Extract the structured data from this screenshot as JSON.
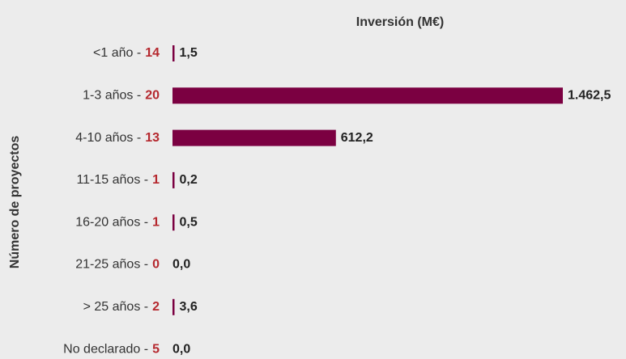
{
  "chart_data": {
    "type": "bar",
    "orientation": "horizontal",
    "title": "Inversión (M€)",
    "y_axis_label": "Número de proyectos",
    "categories": [
      "<1 año -",
      "1-3 años -",
      "4-10 años -",
      "11-15 años -",
      "16-20 años -",
      "21-25 años -",
      "> 25 años -",
      "No declarado -"
    ],
    "project_counts": [
      14,
      20,
      13,
      1,
      1,
      0,
      2,
      5
    ],
    "values": [
      1.5,
      1462.5,
      612.2,
      0.2,
      0.5,
      0,
      3.6,
      0
    ],
    "value_labels": [
      "1,5",
      "1.462,5",
      "612,2",
      "0,2",
      "0,5",
      "0,0",
      "3,6",
      "0,0"
    ],
    "color": "#7b0041",
    "count_color": "#b5282e"
  }
}
